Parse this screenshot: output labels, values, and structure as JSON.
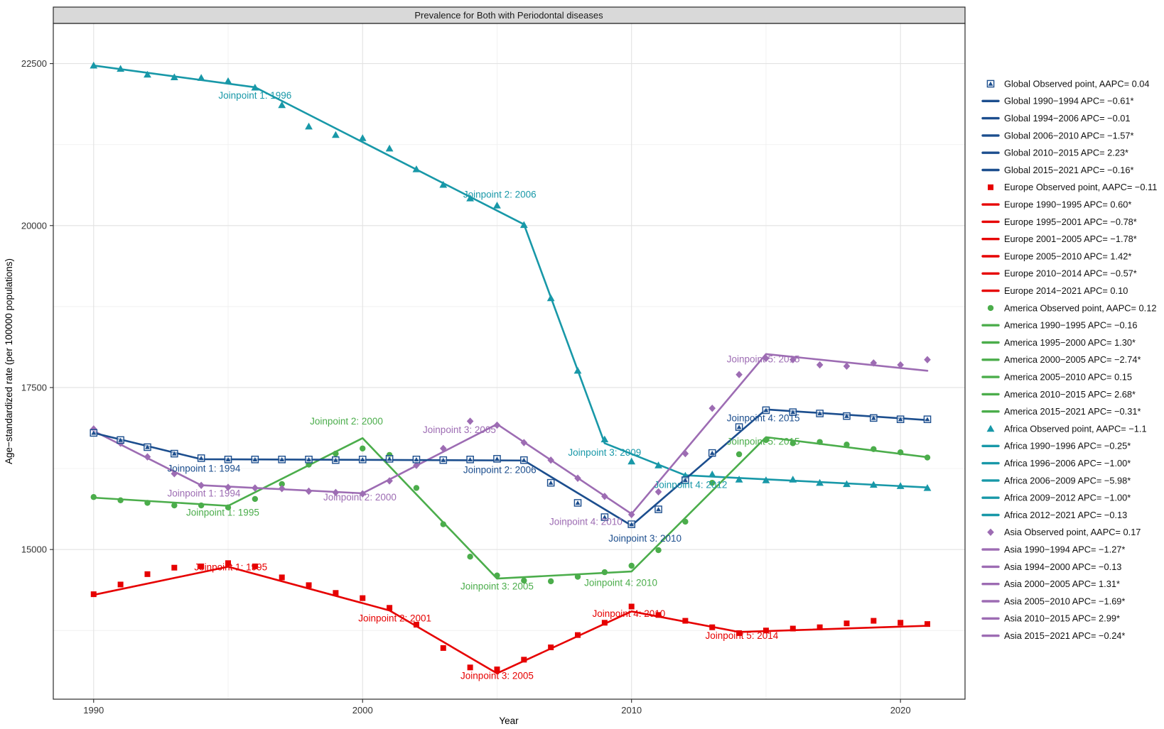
{
  "title": "Prevalence for Both with Periodontal diseases",
  "chart_data": {
    "type": "line",
    "axes": {
      "x_label": "Year",
      "y_label": "Age−standardized rate (per 100000 populations)",
      "x_domain": [
        1988.5,
        2022.4
      ],
      "y_domain": [
        12690,
        23120
      ],
      "x_ticks": [
        1990,
        2000,
        2010,
        2020
      ],
      "x_minor_ticks": [
        1995,
        2005,
        2015
      ],
      "y_ticks": [
        15000,
        17500,
        20000,
        22500
      ],
      "y_minor_ticks": [
        13750,
        16250,
        18750,
        21250
      ],
      "grid": true
    },
    "years": [
      1990,
      1991,
      1992,
      1993,
      1994,
      1995,
      1996,
      1997,
      1998,
      1999,
      2000,
      2001,
      2002,
      2003,
      2004,
      2005,
      2006,
      2007,
      2008,
      2009,
      2010,
      2011,
      2012,
      2013,
      2014,
      2015,
      2016,
      2017,
      2018,
      2019,
      2020,
      2021
    ],
    "series": [
      {
        "key": "africa",
        "name": "Africa",
        "color": "#1898a8",
        "marker": "triangle",
        "aapc": "-1.1",
        "observed": [
          22470,
          22420,
          22330,
          22290,
          22280,
          22230,
          22130,
          21860,
          21530,
          21400,
          21350,
          21190,
          20870,
          20630,
          20420,
          20310,
          20010,
          18880,
          17760,
          16700,
          16360,
          16300,
          16140,
          16160,
          16080,
          16070,
          16080,
          16030,
          16010,
          16000,
          15980,
          15950
        ],
        "joinpoint_years": [
          1990,
          1996,
          2006,
          2009,
          2012,
          2021
        ],
        "joinpoint_values": [
          22470,
          22135,
          20019,
          16640,
          16146,
          15958
        ],
        "annotations": [
          {
            "label": "Joinpoint 1: 1996",
            "x": 1996.0,
            "y": 21960
          },
          {
            "label": "Joinpoint 2: 2006",
            "x": 2005.1,
            "y": 20430
          },
          {
            "label": "Joinpoint 3: 2009",
            "x": 2009.0,
            "y": 16450
          },
          {
            "label": "Joinpoint 4: 2012",
            "x": 2012.2,
            "y": 15950
          }
        ]
      },
      {
        "key": "america",
        "name": "America",
        "color": "#4bad4b",
        "marker": "circle",
        "aapc": "0.12",
        "observed": [
          15810,
          15760,
          15720,
          15680,
          15680,
          15650,
          15780,
          16010,
          16310,
          16480,
          16560,
          16460,
          15950,
          15390,
          14890,
          14600,
          14520,
          14510,
          14580,
          14650,
          14750,
          14990,
          15430,
          16030,
          16470,
          16690,
          16640,
          16660,
          16620,
          16550,
          16500,
          16420
        ],
        "joinpoint_years": [
          1990,
          1995,
          2000,
          2005,
          2010,
          2015,
          2021
        ],
        "joinpoint_values": [
          15800,
          15674,
          16719,
          14552,
          14661,
          16734,
          16425
        ],
        "annotations": [
          {
            "label": "Joinpoint 1: 1995",
            "x": 1994.8,
            "y": 15520
          },
          {
            "label": "Joinpoint 2: 2000",
            "x": 1999.4,
            "y": 16930
          },
          {
            "label": "Joinpoint 3: 2005",
            "x": 2005.0,
            "y": 14380
          },
          {
            "label": "Joinpoint 4: 2010",
            "x": 2009.6,
            "y": 14440
          },
          {
            "label": "Joinpoint 5: 2015",
            "x": 2014.9,
            "y": 16620
          }
        ]
      },
      {
        "key": "asia",
        "name": "Asia",
        "color": "#9d6cb3",
        "marker": "diamond",
        "aapc": "0.17",
        "observed": [
          16860,
          16640,
          16430,
          16170,
          15990,
          15960,
          15950,
          15940,
          15900,
          15880,
          15860,
          16060,
          16300,
          16560,
          16980,
          16920,
          16650,
          16380,
          16100,
          15820,
          15540,
          15890,
          16480,
          17180,
          17700,
          17950,
          17930,
          17850,
          17830,
          17880,
          17850,
          17930
        ],
        "joinpoint_years": [
          1990,
          1994,
          2000,
          2005,
          2010,
          2015,
          2021
        ],
        "joinpoint_values": [
          16830,
          15992,
          15868,
          16935,
          15550,
          18017,
          17759
        ],
        "annotations": [
          {
            "label": "Joinpoint 1: 1994",
            "x": 1994.1,
            "y": 15820
          },
          {
            "label": "Joinpoint 2: 2000",
            "x": 1999.9,
            "y": 15760
          },
          {
            "label": "Joinpoint 3: 2005",
            "x": 2003.6,
            "y": 16800
          },
          {
            "label": "Joinpoint 4: 2010",
            "x": 2008.3,
            "y": 15380
          },
          {
            "label": "Joinpoint 5: 2015",
            "x": 2014.9,
            "y": 17890
          }
        ]
      },
      {
        "key": "global",
        "name": "Global",
        "color": "#1c4e8e",
        "marker": "square-triangle",
        "aapc": "0.04",
        "observed": [
          16800,
          16690,
          16580,
          16480,
          16410,
          16390,
          16390,
          16390,
          16390,
          16380,
          16390,
          16400,
          16390,
          16380,
          16390,
          16400,
          16380,
          16030,
          15720,
          15500,
          15390,
          15620,
          16070,
          16490,
          16890,
          17150,
          17120,
          17100,
          17060,
          17030,
          17010,
          17010
        ],
        "joinpoint_years": [
          1990,
          1994,
          2006,
          2010,
          2015,
          2021
        ],
        "joinpoint_values": [
          16800,
          16394,
          16374,
          15370,
          17162,
          16998
        ],
        "annotations": [
          {
            "label": "Joinpoint 1: 1994",
            "x": 1994.1,
            "y": 16200
          },
          {
            "label": "Joinpoint 2: 2006",
            "x": 2005.1,
            "y": 16180
          },
          {
            "label": "Joinpoint 3: 2010",
            "x": 2010.5,
            "y": 15120
          },
          {
            "label": "Joinpoint 4: 2015",
            "x": 2014.9,
            "y": 16980
          }
        ]
      },
      {
        "key": "europe",
        "name": "Europe",
        "color": "#e60000",
        "marker": "square",
        "aapc": "-0.11",
        "observed": [
          14310,
          14460,
          14620,
          14720,
          14740,
          14790,
          14740,
          14570,
          14450,
          14330,
          14250,
          14100,
          13840,
          13480,
          13180,
          13150,
          13300,
          13490,
          13680,
          13870,
          14120,
          13990,
          13900,
          13800,
          13710,
          13750,
          13780,
          13800,
          13860,
          13900,
          13870,
          13850
        ],
        "joinpoint_years": [
          1990,
          1995,
          2001,
          2005,
          2010,
          2014,
          2021
        ],
        "joinpoint_values": [
          14300,
          14735,
          14060,
          13089,
          14045,
          13727,
          13823
        ],
        "annotations": [
          {
            "label": "Joinpoint 1: 1995",
            "x": 1995.1,
            "y": 14680
          },
          {
            "label": "Joinpoint 2: 2001",
            "x": 2001.2,
            "y": 13890
          },
          {
            "label": "Joinpoint 3: 2005",
            "x": 2005.0,
            "y": 13000
          },
          {
            "label": "Joinpoint 4: 2010",
            "x": 2009.9,
            "y": 13960
          },
          {
            "label": "Joinpoint 5: 2014",
            "x": 2014.1,
            "y": 13620
          }
        ]
      }
    ]
  },
  "legend": {
    "items": [
      {
        "series_key": "global",
        "kind": "point",
        "label": "Global Observed point, AAPC= 0.04"
      },
      {
        "series_key": "global",
        "kind": "line",
        "label": "Global 1990−1994 APC= −0.61*"
      },
      {
        "series_key": "global",
        "kind": "line",
        "label": "Global 1994−2006 APC= −0.01"
      },
      {
        "series_key": "global",
        "kind": "line",
        "label": "Global 2006−2010 APC= −1.57*"
      },
      {
        "series_key": "global",
        "kind": "line",
        "label": "Global 2010−2015 APC= 2.23*"
      },
      {
        "series_key": "global",
        "kind": "line",
        "label": "Global 2015−2021 APC= −0.16*"
      },
      {
        "series_key": "europe",
        "kind": "point",
        "label": "Europe Observed point, AAPC= −0.11"
      },
      {
        "series_key": "europe",
        "kind": "line",
        "label": "Europe 1990−1995 APC= 0.60*"
      },
      {
        "series_key": "europe",
        "kind": "line",
        "label": "Europe 1995−2001 APC= −0.78*"
      },
      {
        "series_key": "europe",
        "kind": "line",
        "label": "Europe 2001−2005 APC= −1.78*"
      },
      {
        "series_key": "europe",
        "kind": "line",
        "label": "Europe 2005−2010 APC= 1.42*"
      },
      {
        "series_key": "europe",
        "kind": "line",
        "label": "Europe 2010−2014 APC= −0.57*"
      },
      {
        "series_key": "europe",
        "kind": "line",
        "label": "Europe 2014−2021 APC= 0.10"
      },
      {
        "series_key": "america",
        "kind": "point",
        "label": "America Observed point, AAPC= 0.12"
      },
      {
        "series_key": "america",
        "kind": "line",
        "label": "America 1990−1995 APC= −0.16"
      },
      {
        "series_key": "america",
        "kind": "line",
        "label": "America 1995−2000 APC= 1.30*"
      },
      {
        "series_key": "america",
        "kind": "line",
        "label": "America 2000−2005 APC= −2.74*"
      },
      {
        "series_key": "america",
        "kind": "line",
        "label": "America 2005−2010 APC= 0.15"
      },
      {
        "series_key": "america",
        "kind": "line",
        "label": "America 2010−2015 APC= 2.68*"
      },
      {
        "series_key": "america",
        "kind": "line",
        "label": "America 2015−2021 APC= −0.31*"
      },
      {
        "series_key": "africa",
        "kind": "point",
        "label": "Africa Observed point, AAPC= −1.1"
      },
      {
        "series_key": "africa",
        "kind": "line",
        "label": "Africa 1990−1996 APC= −0.25*"
      },
      {
        "series_key": "africa",
        "kind": "line",
        "label": "Africa 1996−2006 APC= −1.00*"
      },
      {
        "series_key": "africa",
        "kind": "line",
        "label": "Africa 2006−2009 APC= −5.98*"
      },
      {
        "series_key": "africa",
        "kind": "line",
        "label": "Africa 2009−2012 APC= −1.00*"
      },
      {
        "series_key": "africa",
        "kind": "line",
        "label": "Africa 2012−2021 APC= −0.13"
      },
      {
        "series_key": "asia",
        "kind": "point",
        "label": "Asia Observed point, AAPC= 0.17"
      },
      {
        "series_key": "asia",
        "kind": "line",
        "label": "Asia 1990−1994 APC= −1.27*"
      },
      {
        "series_key": "asia",
        "kind": "line",
        "label": "Asia 1994−2000 APC= −0.13"
      },
      {
        "series_key": "asia",
        "kind": "line",
        "label": "Asia 2000−2005 APC= 1.31*"
      },
      {
        "series_key": "asia",
        "kind": "line",
        "label": "Asia 2005−2010 APC= −1.69*"
      },
      {
        "series_key": "asia",
        "kind": "line",
        "label": "Asia 2010−2015 APC= 2.99*"
      },
      {
        "series_key": "asia",
        "kind": "line",
        "label": "Asia 2015−2021 APC= −0.24*"
      }
    ]
  }
}
